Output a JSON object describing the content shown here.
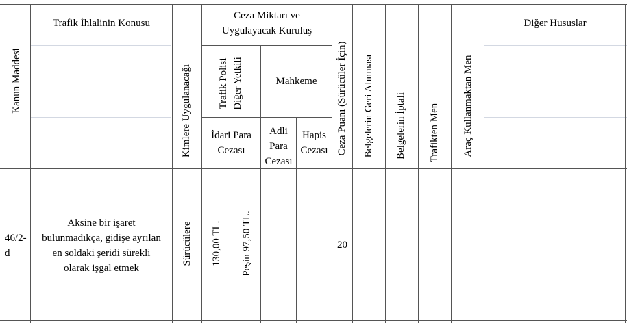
{
  "header": {
    "kanun_maddesi": "Kanun Maddesi",
    "ihlal_konusu": "Trafik İhlalinin Konusu",
    "kimlere": "Kimlere Uygulanacağı",
    "ceza_miktari_line1": "Ceza Miktarı ve",
    "ceza_miktari_line2": "Uygulayacak Kuruluş",
    "trafik_polisi_line1": "Trafik Polisi",
    "trafik_polisi_line2": "Diğer Yetkili",
    "mahkeme": "Mahkeme",
    "idari_line1": "İdari Para",
    "idari_line2": "Cezası",
    "adli_line1": "Adli",
    "adli_line2": "Para",
    "adli_line3": "Cezası",
    "hapis_line1": "Hapis",
    "hapis_line2": "Cezası",
    "ceza_puani": "Ceza Puanı (Sürücüler İçin)",
    "geri_alinmasi": "Belgelerin Geri Alınması",
    "iptali": "Belgelerin İptali",
    "trafikten_men": "Trafikten Men",
    "arac_men": "Araç Kullanmaktan Men",
    "diger": "Diğer Hususlar"
  },
  "row": {
    "madde_line1": "46/2-",
    "madde_line2": "d",
    "konu_line1": "Aksine bir işaret",
    "konu_line2": "bulunmadıkça, gidişe ayrılan",
    "konu_line3": "en soldaki şeridi sürekli",
    "konu_line4": "olarak işgal etmek",
    "kimlere": "Sürücülere",
    "idari_ceza": "130,00 TL.",
    "pesin": "Peşin 97,50 TL.",
    "ceza_puani": "20"
  }
}
